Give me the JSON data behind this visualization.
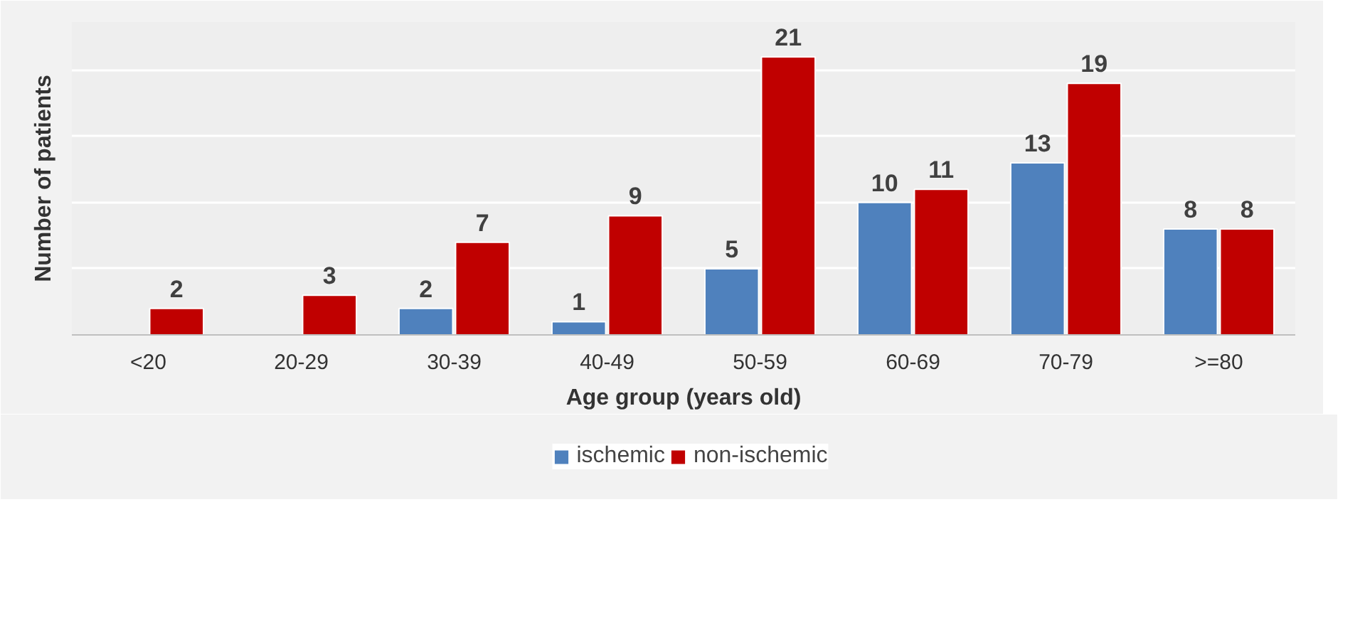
{
  "chart_data": {
    "type": "bar",
    "xlabel": "Age group (years old)",
    "ylabel": "Number of patients",
    "categories": [
      "<20",
      "20-29",
      "30-39",
      "40-49",
      "50-59",
      "60-69",
      "70-79",
      ">=80"
    ],
    "series": [
      {
        "name": "ischemic",
        "color": "#4f81bd",
        "values": [
          null,
          null,
          2,
          1,
          5,
          10,
          13,
          8
        ]
      },
      {
        "name": "non-ischemic",
        "color": "#c00000",
        "values": [
          2,
          3,
          7,
          9,
          21,
          11,
          19,
          8
        ]
      }
    ],
    "tick_labels": "x",
    "grid": "y",
    "legend": "bottom",
    "data_labels": true
  }
}
